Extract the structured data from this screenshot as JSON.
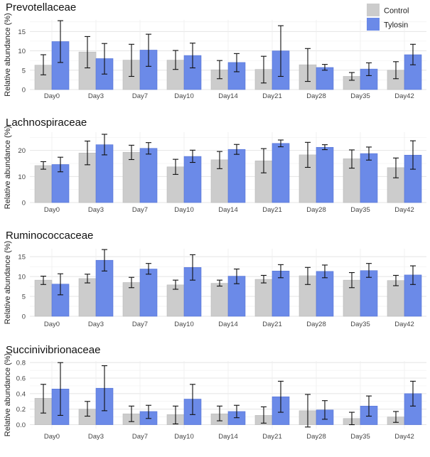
{
  "legend": {
    "placement": "top-right",
    "items": [
      {
        "label": "Control",
        "color": "#cccccc"
      },
      {
        "label": "Tylosin",
        "color": "#6b8ae8"
      }
    ]
  },
  "colors": {
    "control": "#cccccc",
    "tylosin": "#6b8ae8",
    "grid": "#e6e6e6",
    "errorbar": "#111111"
  },
  "chart_data": [
    {
      "type": "bar",
      "title": "Prevotellaceae",
      "ylabel": "Relative abundance (%)",
      "xlabel": "",
      "categories": [
        "Day0",
        "Day3",
        "Day7",
        "Day10",
        "Day14",
        "Day21",
        "Day28",
        "Day35",
        "Day42"
      ],
      "ylim": [
        0,
        18
      ],
      "yticks": [
        "0",
        "5",
        "10",
        "15"
      ],
      "grid": true,
      "series": [
        {
          "name": "Control",
          "values": [
            6.3,
            9.7,
            7.6,
            7.6,
            5.1,
            5.2,
            6.4,
            3.4,
            5.0
          ],
          "err_low": [
            3.8,
            5.6,
            3.4,
            5.2,
            2.8,
            1.7,
            2.1,
            2.4,
            2.8
          ],
          "err_high": [
            9.0,
            13.7,
            11.7,
            10.1,
            7.5,
            8.6,
            10.6,
            4.4,
            7.2
          ]
        },
        {
          "name": "Tylosin",
          "values": [
            12.4,
            8.0,
            10.2,
            8.8,
            7.0,
            10.0,
            5.7,
            5.3,
            9.0
          ],
          "err_low": [
            7.0,
            4.0,
            6.0,
            5.6,
            4.6,
            3.4,
            5.0,
            3.6,
            6.4
          ],
          "err_high": [
            17.8,
            11.9,
            14.3,
            12.0,
            9.3,
            16.5,
            6.5,
            6.9,
            11.7
          ]
        }
      ]
    },
    {
      "type": "bar",
      "title": "Lachnospiraceae",
      "ylabel": "Relative abundance (%)",
      "xlabel": "",
      "categories": [
        "Day0",
        "Day3",
        "Day7",
        "Day10",
        "Day14",
        "Day21",
        "Day28",
        "Day35",
        "Day42"
      ],
      "ylim": [
        0,
        27
      ],
      "yticks": [
        "0",
        "10",
        "20"
      ],
      "grid": true,
      "series": [
        {
          "name": "Control",
          "values": [
            14.2,
            19.0,
            19.3,
            13.7,
            16.4,
            16.0,
            18.3,
            16.8,
            13.4
          ],
          "err_low": [
            12.8,
            14.5,
            16.5,
            10.8,
            13.0,
            11.4,
            13.5,
            13.2,
            9.5
          ],
          "err_high": [
            15.7,
            23.6,
            22.0,
            16.6,
            19.6,
            20.7,
            23.1,
            20.2,
            17.1
          ]
        },
        {
          "name": "Tylosin",
          "values": [
            14.6,
            22.2,
            20.8,
            17.7,
            20.4,
            22.7,
            21.2,
            18.8,
            18.2
          ],
          "err_low": [
            11.8,
            18.3,
            18.6,
            15.4,
            18.5,
            21.4,
            20.3,
            16.3,
            12.8
          ],
          "err_high": [
            17.4,
            26.2,
            23.0,
            20.1,
            22.3,
            24.0,
            22.2,
            21.3,
            23.7
          ]
        }
      ]
    },
    {
      "type": "bar",
      "title": "Ruminococcaceae",
      "ylabel": "Relative abundance (%)",
      "xlabel": "",
      "categories": [
        "Day0",
        "Day3",
        "Day7",
        "Day10",
        "Day14",
        "Day21",
        "Day28",
        "Day35",
        "Day42"
      ],
      "ylim": [
        0,
        17
      ],
      "yticks": [
        "0",
        "5",
        "10",
        "15"
      ],
      "grid": true,
      "series": [
        {
          "name": "Control",
          "values": [
            9.1,
            9.5,
            8.5,
            7.9,
            8.3,
            9.3,
            10.2,
            9.1,
            9.0
          ],
          "err_low": [
            8.0,
            8.4,
            7.2,
            6.8,
            7.6,
            8.4,
            8.0,
            7.2,
            7.7
          ],
          "err_high": [
            10.1,
            10.6,
            9.8,
            9.1,
            9.1,
            10.3,
            12.3,
            11.0,
            10.3
          ]
        },
        {
          "name": "Tylosin",
          "values": [
            8.1,
            14.1,
            11.9,
            12.3,
            10.1,
            11.4,
            11.3,
            11.5,
            10.4
          ],
          "err_low": [
            5.4,
            11.4,
            10.6,
            9.1,
            8.2,
            9.7,
            9.7,
            9.8,
            8.0
          ],
          "err_high": [
            10.7,
            16.8,
            13.3,
            15.5,
            11.9,
            13.0,
            12.9,
            13.3,
            12.7
          ]
        }
      ]
    },
    {
      "type": "bar",
      "title": "Succinivibrionaceae",
      "ylabel": "Relative abundance (%)",
      "xlabel": "",
      "categories": [
        "Day0",
        "Day3",
        "Day7",
        "Day10",
        "Day14",
        "Day21",
        "Day28",
        "Day35",
        "Day42"
      ],
      "ylim": [
        -0.05,
        0.82
      ],
      "yticks": [
        "0.0",
        "0.2",
        "0.4",
        "0.6",
        "0.8"
      ],
      "grid": true,
      "series": [
        {
          "name": "Control",
          "values": [
            0.34,
            0.2,
            0.14,
            0.13,
            0.14,
            0.12,
            0.18,
            0.08,
            0.1
          ],
          "err_low": [
            0.15,
            0.11,
            0.04,
            0.01,
            0.05,
            0.02,
            -0.03,
            0.0,
            0.03
          ],
          "err_high": [
            0.52,
            0.3,
            0.24,
            0.24,
            0.24,
            0.23,
            0.39,
            0.16,
            0.17
          ]
        },
        {
          "name": "Tylosin",
          "values": [
            0.46,
            0.47,
            0.17,
            0.33,
            0.17,
            0.36,
            0.19,
            0.24,
            0.4
          ],
          "err_low": [
            0.12,
            0.18,
            0.08,
            0.13,
            0.09,
            0.16,
            0.07,
            0.11,
            0.24
          ],
          "err_high": [
            0.8,
            0.76,
            0.25,
            0.52,
            0.25,
            0.56,
            0.31,
            0.37,
            0.56
          ]
        }
      ]
    }
  ]
}
